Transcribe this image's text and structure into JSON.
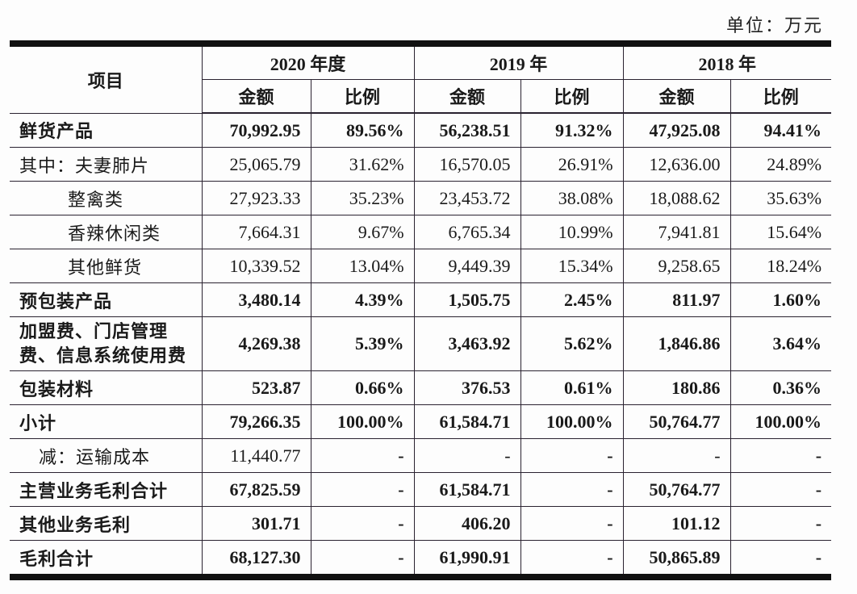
{
  "unit_label": "单位：万元",
  "header": {
    "item_label": "项目",
    "years": [
      {
        "label": "2020 年度",
        "amount_label": "金额",
        "ratio_label": "比例"
      },
      {
        "label": "2019 年",
        "amount_label": "金额",
        "ratio_label": "比例"
      },
      {
        "label": "2018 年",
        "amount_label": "金额",
        "ratio_label": "比例"
      }
    ]
  },
  "rows": [
    {
      "label": "鲜货产品",
      "bold": true,
      "values": [
        "70,992.95",
        "89.56%",
        "56,238.51",
        "91.32%",
        "47,925.08",
        "94.41%"
      ]
    },
    {
      "label": "其中：夫妻肺片",
      "bold": false,
      "values": [
        "25,065.79",
        "31.62%",
        "16,570.05",
        "26.91%",
        "12,636.00",
        "24.89%"
      ]
    },
    {
      "label": "整禽类",
      "bold": false,
      "values": [
        "27,923.33",
        "35.23%",
        "23,453.72",
        "38.08%",
        "18,088.62",
        "35.63%"
      ]
    },
    {
      "label": "香辣休闲类",
      "bold": false,
      "values": [
        "7,664.31",
        "9.67%",
        "6,765.34",
        "10.99%",
        "7,941.81",
        "15.64%"
      ]
    },
    {
      "label": "其他鲜货",
      "bold": false,
      "values": [
        "10,339.52",
        "13.04%",
        "9,449.39",
        "15.34%",
        "9,258.65",
        "18.24%"
      ]
    },
    {
      "label": "预包装产品",
      "bold": true,
      "values": [
        "3,480.14",
        "4.39%",
        "1,505.75",
        "2.45%",
        "811.97",
        "1.60%"
      ]
    },
    {
      "label": "加盟费、门店管理费、信息系统使用费",
      "bold": true,
      "values": [
        "4,269.38",
        "5.39%",
        "3,463.92",
        "5.62%",
        "1,846.86",
        "3.64%"
      ]
    },
    {
      "label": "包装材料",
      "bold": true,
      "values": [
        "523.87",
        "0.66%",
        "376.53",
        "0.61%",
        "180.86",
        "0.36%"
      ]
    },
    {
      "label": "小计",
      "bold": true,
      "values": [
        "79,266.35",
        "100.00%",
        "61,584.71",
        "100.00%",
        "50,764.77",
        "100.00%"
      ]
    },
    {
      "label": "减：运输成本",
      "bold": false,
      "values": [
        "11,440.77",
        "-",
        "-",
        "-",
        "-",
        "-"
      ]
    },
    {
      "label": "主营业务毛利合计",
      "bold": true,
      "values": [
        "67,825.59",
        "-",
        "61,584.71",
        "-",
        "50,764.77",
        "-"
      ]
    },
    {
      "label": "其他业务毛利",
      "bold": true,
      "values": [
        "301.71",
        "-",
        "406.20",
        "-",
        "101.12",
        "-"
      ]
    },
    {
      "label": "毛利合计",
      "bold": true,
      "values": [
        "68,127.30",
        "-",
        "61,990.91",
        "-",
        "50,865.89",
        "-"
      ]
    }
  ]
}
